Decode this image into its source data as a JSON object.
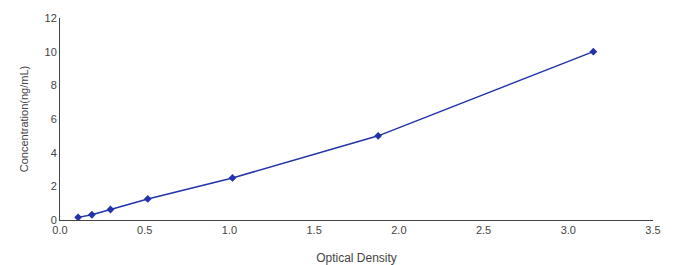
{
  "chart_data": {
    "type": "line",
    "x": [
      0.107,
      0.188,
      0.298,
      0.518,
      1.018,
      1.878,
      3.148
    ],
    "values": [
      0.156,
      0.313,
      0.625,
      1.25,
      2.5,
      5.0,
      10.0
    ],
    "color": "#2233AA",
    "marker": "diamond",
    "xlabel": "Optical Density",
    "ylabel": "Concentration(ng/mL)",
    "xlim": [
      0,
      3.5
    ],
    "ylim": [
      0,
      12
    ],
    "xticks": [
      {
        "value": 0,
        "label": "0.0"
      },
      {
        "value": 0.5,
        "label": "0.5"
      },
      {
        "value": 1.0,
        "label": "1.0"
      },
      {
        "value": 1.5,
        "label": "1.5"
      },
      {
        "value": 2.0,
        "label": "2.0"
      },
      {
        "value": 2.5,
        "label": "2.5"
      },
      {
        "value": 3.0,
        "label": "3.0"
      },
      {
        "value": 3.5,
        "label": "3.5"
      }
    ],
    "yticks": [
      0,
      2,
      4,
      6,
      8,
      10,
      12
    ],
    "grid": false
  }
}
